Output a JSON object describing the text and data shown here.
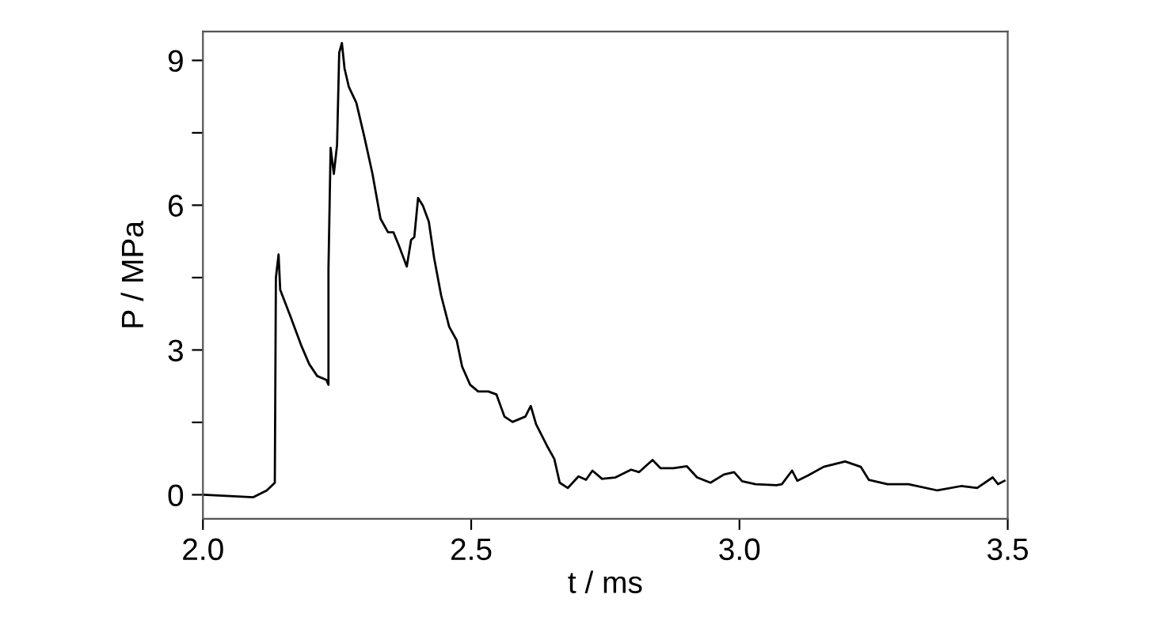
{
  "chart_data": {
    "type": "line",
    "xlabel": "t / ms",
    "ylabel": "P / MPa",
    "xlim": [
      2.0,
      3.5
    ],
    "ylim": [
      -0.5,
      9.6
    ],
    "xticks": [
      {
        "value": 2.0,
        "label": "2.0"
      },
      {
        "value": 2.5,
        "label": "2.5"
      },
      {
        "value": 3.0,
        "label": "3.0"
      },
      {
        "value": 3.5,
        "label": "3.5"
      }
    ],
    "yticks": [
      0,
      {
        "value": 1.5,
        "label": null
      },
      3,
      {
        "value": 4.5,
        "label": null
      },
      6,
      {
        "value": 7.5,
        "label": null
      },
      9
    ],
    "grid": false,
    "legend": false,
    "marker": "none",
    "line_style": "solid",
    "series": [
      {
        "color": "#000000",
        "x": [
          2.0,
          2.094,
          2.119,
          2.134,
          2.136,
          2.141,
          2.144,
          2.163,
          2.183,
          2.198,
          2.213,
          2.23,
          2.234,
          2.234,
          2.238,
          2.244,
          2.25,
          2.254,
          2.259,
          2.264,
          2.272,
          2.286,
          2.301,
          2.316,
          2.331,
          2.345,
          2.355,
          2.365,
          2.38,
          2.388,
          2.394,
          2.401,
          2.41,
          2.421,
          2.431,
          2.444,
          2.459,
          2.473,
          2.483,
          2.498,
          2.513,
          2.532,
          2.547,
          2.562,
          2.577,
          2.601,
          2.611,
          2.621,
          2.641,
          2.655,
          2.665,
          2.68,
          2.7,
          2.714,
          2.726,
          2.744,
          2.769,
          2.798,
          2.813,
          2.838,
          2.853,
          2.877,
          2.902,
          2.921,
          2.946,
          2.971,
          2.99,
          3.005,
          3.03,
          3.069,
          3.079,
          3.098,
          3.108,
          3.128,
          3.157,
          3.197,
          3.226,
          3.241,
          3.276,
          3.315,
          3.369,
          3.413,
          3.443,
          3.472,
          3.482,
          3.494
        ],
        "values": [
          0.0,
          -0.05,
          0.09,
          0.25,
          4.5,
          4.98,
          4.25,
          3.7,
          3.1,
          2.71,
          2.46,
          2.38,
          2.28,
          4.68,
          7.19,
          6.65,
          7.25,
          9.16,
          9.36,
          8.83,
          8.45,
          8.12,
          7.41,
          6.65,
          5.72,
          5.44,
          5.44,
          5.17,
          4.73,
          5.28,
          5.34,
          6.15,
          5.99,
          5.66,
          4.9,
          4.13,
          3.48,
          3.2,
          2.66,
          2.28,
          2.14,
          2.14,
          2.08,
          1.62,
          1.51,
          1.62,
          1.84,
          1.46,
          1.02,
          0.74,
          0.25,
          0.14,
          0.38,
          0.31,
          0.5,
          0.33,
          0.36,
          0.52,
          0.47,
          0.72,
          0.55,
          0.55,
          0.59,
          0.36,
          0.25,
          0.42,
          0.47,
          0.28,
          0.22,
          0.2,
          0.22,
          0.5,
          0.29,
          0.4,
          0.58,
          0.69,
          0.58,
          0.31,
          0.22,
          0.22,
          0.09,
          0.18,
          0.14,
          0.36,
          0.22,
          0.29
        ]
      }
    ]
  }
}
